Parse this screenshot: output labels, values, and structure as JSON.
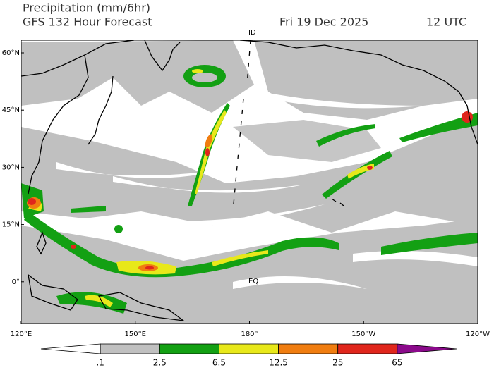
{
  "header": {
    "title": "Precipitation (mm/6hr)",
    "subtitle": "GFS 132 Hour Forecast",
    "date": "Fri 19 Dec 2025",
    "time": "12 UTC"
  },
  "map": {
    "lat_labels": [
      "60°N",
      "45°N",
      "30°N",
      "15°N",
      "0°"
    ],
    "lon_labels": [
      "120°E",
      "150°E",
      "180°",
      "150°W",
      "120°W"
    ],
    "annotations": [
      "EQ",
      "ID"
    ]
  },
  "colorbar": {
    "labels": [
      ".1",
      "2.5",
      "6.5",
      "12.5",
      "25",
      "65"
    ],
    "colors": [
      "#ffffff",
      "#c0c0c0",
      "#13a013",
      "#e8e81a",
      "#f07d10",
      "#e0261c",
      "#8b0a8b"
    ]
  }
}
